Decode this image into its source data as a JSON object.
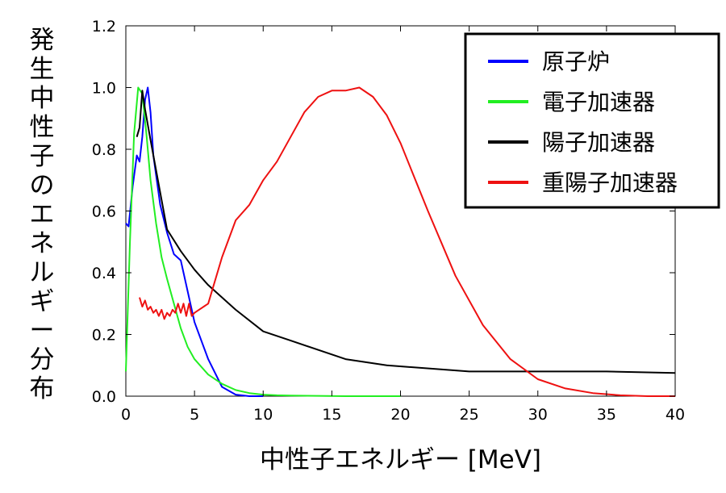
{
  "chart_data": {
    "type": "line",
    "title": "",
    "xlabel": "中性子エネルギー [MeV]",
    "ylabel": "発生中性子のエネルギー分布",
    "xlim": [
      0,
      40
    ],
    "ylim": [
      0,
      1.2
    ],
    "xticks": [
      "0",
      "5",
      "10",
      "15",
      "20",
      "25",
      "30",
      "35",
      "40"
    ],
    "yticks": [
      "0.0",
      "0.2",
      "0.4",
      "0.6",
      "0.8",
      "1.0",
      "1.2"
    ],
    "grid": false,
    "legend_position": "top-right",
    "series": [
      {
        "name": "原子炉",
        "color": "#0000ff",
        "x": [
          0,
          0.2,
          0.5,
          0.8,
          1.0,
          1.2,
          1.4,
          1.6,
          1.8,
          2.0,
          2.5,
          3.0,
          3.5,
          4.0,
          4.5,
          5.0,
          6.0,
          7.0,
          8.0,
          9.0,
          10.0
        ],
        "y": [
          0.56,
          0.55,
          0.68,
          0.78,
          0.76,
          0.84,
          0.96,
          1.0,
          0.92,
          0.78,
          0.62,
          0.53,
          0.46,
          0.44,
          0.34,
          0.24,
          0.12,
          0.03,
          0.005,
          0.0,
          0.0
        ]
      },
      {
        "name": "電子加速器",
        "color": "#22ee22",
        "x": [
          0,
          0.3,
          0.6,
          0.9,
          1.2,
          1.5,
          1.8,
          2.2,
          2.6,
          3.0,
          3.5,
          4.0,
          4.5,
          5.0,
          6.0,
          7.0,
          8.0,
          9.0,
          10.0,
          11.0,
          12.0,
          14.0,
          16.0,
          18.0,
          20.0
        ],
        "y": [
          0.08,
          0.5,
          0.85,
          1.0,
          0.98,
          0.85,
          0.7,
          0.56,
          0.45,
          0.38,
          0.3,
          0.22,
          0.16,
          0.12,
          0.07,
          0.04,
          0.02,
          0.01,
          0.005,
          0.003,
          0.002,
          0.001,
          0.0,
          0.0,
          0.0
        ]
      },
      {
        "name": "陽子加速器",
        "color": "#000000",
        "x": [
          0.8,
          1.0,
          1.2,
          1.4,
          1.6,
          1.8,
          2.0,
          2.5,
          3.0,
          4.0,
          5.0,
          6.0,
          8.0,
          10.0,
          12.0,
          16.0,
          19.0,
          25.0,
          30.0,
          35.0,
          40.0
        ],
        "y": [
          0.84,
          0.87,
          0.99,
          0.93,
          0.88,
          0.83,
          0.78,
          0.66,
          0.54,
          0.47,
          0.41,
          0.36,
          0.28,
          0.21,
          0.18,
          0.12,
          0.1,
          0.08,
          0.08,
          0.08,
          0.075
        ]
      },
      {
        "name": "重陽子加速器",
        "color": "#ee1111",
        "x": [
          1.0,
          1.2,
          1.4,
          1.6,
          1.8,
          2.0,
          2.2,
          2.4,
          2.6,
          2.8,
          3.0,
          3.2,
          3.4,
          3.6,
          3.8,
          4.0,
          4.2,
          4.4,
          4.6,
          4.8,
          5.0,
          6.0,
          7.0,
          8.0,
          9.0,
          10.0,
          11.0,
          12.0,
          13.0,
          14.0,
          15.0,
          16.0,
          17.0,
          18.0,
          19.0,
          20.0,
          22.0,
          24.0,
          26.0,
          28.0,
          30.0,
          32.0,
          34.0,
          36.0,
          38.0,
          40.0
        ],
        "y": [
          0.32,
          0.29,
          0.31,
          0.28,
          0.29,
          0.27,
          0.28,
          0.26,
          0.28,
          0.25,
          0.27,
          0.26,
          0.28,
          0.27,
          0.3,
          0.27,
          0.3,
          0.26,
          0.3,
          0.26,
          0.27,
          0.3,
          0.45,
          0.57,
          0.62,
          0.7,
          0.76,
          0.84,
          0.92,
          0.97,
          0.99,
          0.99,
          1.0,
          0.97,
          0.91,
          0.82,
          0.6,
          0.39,
          0.23,
          0.12,
          0.055,
          0.025,
          0.01,
          0.003,
          0.0,
          0.0
        ]
      }
    ]
  }
}
